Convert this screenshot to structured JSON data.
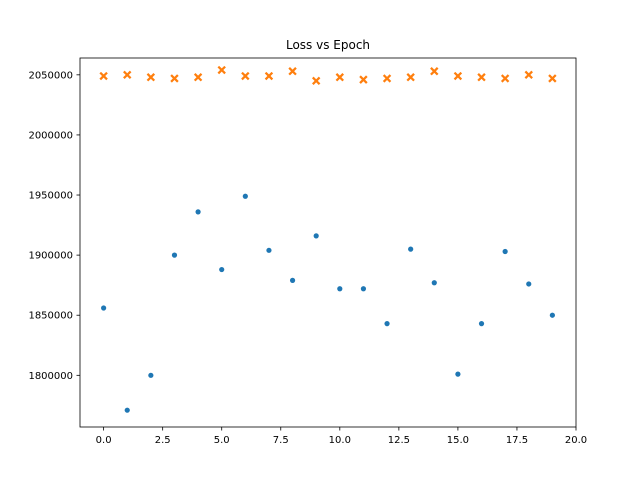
{
  "chart_data": {
    "type": "scatter",
    "title": "Loss vs Epoch",
    "xlabel": "",
    "ylabel": "",
    "xlim": [
      -1.0,
      20.0
    ],
    "ylim": [
      1757000,
      2064000
    ],
    "x_ticks": [
      0.0,
      2.5,
      5.0,
      7.5,
      10.0,
      12.5,
      15.0,
      17.5,
      20.0
    ],
    "x_tick_labels": [
      "0.0",
      "2.5",
      "5.0",
      "7.5",
      "10.0",
      "12.5",
      "15.0",
      "17.5",
      "20.0"
    ],
    "y_ticks": [
      1800000,
      1850000,
      1900000,
      1950000,
      2000000,
      2050000
    ],
    "y_tick_labels": [
      "1800000",
      "1850000",
      "1900000",
      "1950000",
      "2000000",
      "2050000"
    ],
    "grid": false,
    "legend": "none",
    "series": [
      {
        "marker": "dot",
        "color": "#1f77b4",
        "x": [
          0,
          1,
          2,
          3,
          4,
          5,
          6,
          7,
          8,
          9,
          10,
          11,
          12,
          13,
          14,
          15,
          16,
          17,
          18,
          19
        ],
        "y": [
          1856000,
          1771000,
          1800000,
          1900000,
          1936000,
          1888000,
          1949000,
          1904000,
          1879000,
          1916000,
          1872000,
          1872000,
          1843000,
          1905000,
          1877000,
          1801000,
          1843000,
          1903000,
          1876000,
          1850000
        ]
      },
      {
        "marker": "x",
        "color": "#ff7f0e",
        "x": [
          0,
          1,
          2,
          3,
          4,
          5,
          6,
          7,
          8,
          9,
          10,
          11,
          12,
          13,
          14,
          15,
          16,
          17,
          18,
          19
        ],
        "y": [
          2049000,
          2050000,
          2048000,
          2047000,
          2048000,
          2054000,
          2049000,
          2049000,
          2053000,
          2045000,
          2048000,
          2046000,
          2047000,
          2048000,
          2053000,
          2049000,
          2048000,
          2047000,
          2050000,
          2047000
        ]
      }
    ]
  }
}
